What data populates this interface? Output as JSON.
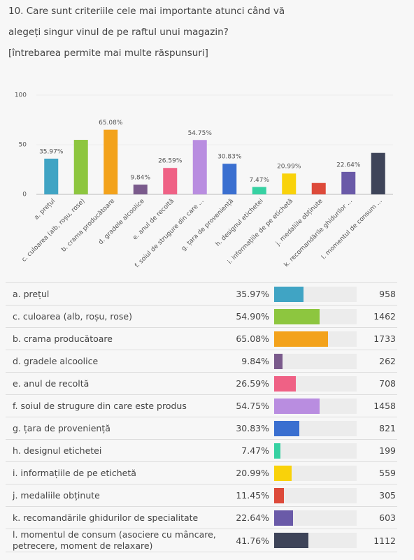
{
  "question": {
    "title_line1": "10. Care sunt criteriile cele mai importante atunci când vă",
    "title_line2": "alegeți singur vinul de pe raftul unui magazin?",
    "note": "[întrebarea permite mai multe răspunsuri]"
  },
  "chart_data": {
    "type": "bar",
    "categories": [
      "a. prețul",
      "c. culoarea (alb, roșu, rose)",
      "b. crama producătoare",
      "d. gradele alcoolice",
      "e. anul de recoltă",
      "f. soiul de strugure din care ...",
      "g. țara de proveniență",
      "h. designul etichetei",
      "i. informațiile de pe etichetă",
      "j. medaliile obținute",
      "k. recomandările ghidurilor ...",
      "l. momentul de consum ..."
    ],
    "values": [
      35.97,
      54.9,
      65.08,
      9.84,
      26.59,
      54.75,
      30.83,
      7.47,
      20.99,
      11.45,
      22.64,
      41.76
    ],
    "value_labels": [
      "35.97%",
      null,
      "65.08%",
      "9.84%",
      "26.59%",
      "54.75%",
      "30.83%",
      "7.47%",
      "20.99%",
      null,
      "22.64%",
      null
    ],
    "colors": [
      "#40a4c4",
      "#8dc63f",
      "#f3a21b",
      "#7a5a8c",
      "#ef6185",
      "#b98de0",
      "#3a6fd0",
      "#36d1a2",
      "#f9d20a",
      "#dd4a3a",
      "#6a5aa8",
      "#3e4459"
    ],
    "ylim": [
      0,
      100
    ],
    "yticks": [
      0,
      50,
      100
    ]
  },
  "table": {
    "rows": [
      {
        "label": "a. prețul",
        "percent": "35.97%",
        "count": 958
      },
      {
        "label": "c. culoarea (alb, roșu, rose)",
        "percent": "54.90%",
        "count": 1462
      },
      {
        "label": "b. crama producătoare",
        "percent": "65.08%",
        "count": 1733
      },
      {
        "label": "d. gradele alcoolice",
        "percent": "9.84%",
        "count": 262
      },
      {
        "label": "e. anul de recoltă",
        "percent": "26.59%",
        "count": 708
      },
      {
        "label": "f. soiul de strugure din care este produs",
        "percent": "54.75%",
        "count": 1458
      },
      {
        "label": "g. țara de proveniență",
        "percent": "30.83%",
        "count": 821
      },
      {
        "label": "h. designul etichetei",
        "percent": "7.47%",
        "count": 199
      },
      {
        "label": "i. informațiile de pe etichetă",
        "percent": "20.99%",
        "count": 559
      },
      {
        "label": "j. medaliile obținute",
        "percent": "11.45%",
        "count": 305
      },
      {
        "label": "k. recomandările ghidurilor de specialitate",
        "percent": "22.64%",
        "count": 603
      },
      {
        "label": "l. momentul de consum (asociere cu mâncare, petrecere, moment de relaxare)",
        "percent": "41.76%",
        "count": 1112
      }
    ]
  }
}
